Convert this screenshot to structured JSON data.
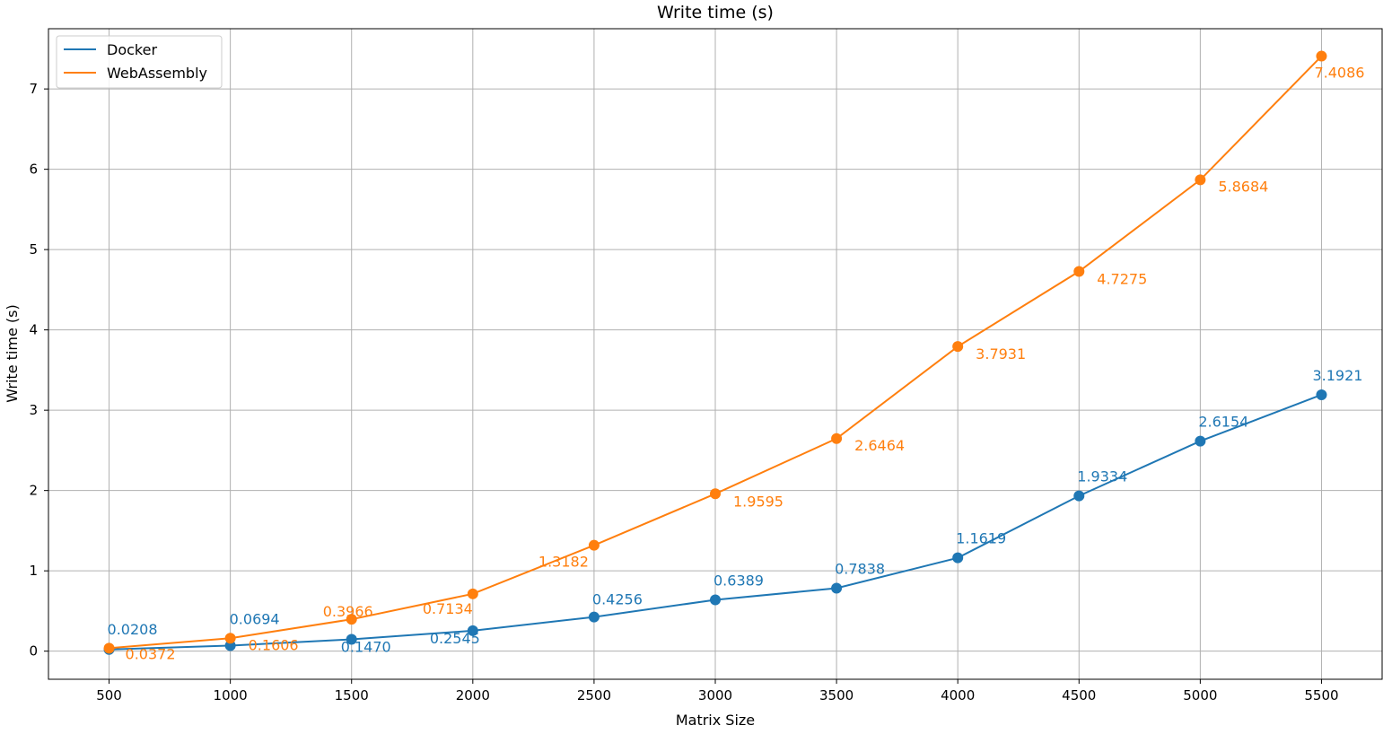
{
  "chart_data": {
    "type": "line",
    "title": "Write time (s)",
    "xlabel": "Matrix Size",
    "ylabel": "Write time (s)",
    "x": [
      500,
      1000,
      1500,
      2000,
      2500,
      3000,
      3500,
      4000,
      4500,
      5000,
      5500
    ],
    "xlim": [
      250,
      5750
    ],
    "ylim": [
      -0.35,
      7.75
    ],
    "xticks": [
      500,
      1000,
      1500,
      2000,
      2500,
      3000,
      3500,
      4000,
      4500,
      5000,
      5500
    ],
    "yticks": [
      0,
      1,
      2,
      3,
      4,
      5,
      6,
      7
    ],
    "grid": true,
    "legend_position": "top-left",
    "series": [
      {
        "name": "Docker",
        "color": "#1f77b4",
        "values": [
          0.0208,
          0.0694,
          0.147,
          0.2545,
          0.4256,
          0.6389,
          0.7838,
          1.1619,
          1.9334,
          2.6154,
          3.1921
        ],
        "labels": [
          "0.0208",
          "0.0694",
          "0.1470",
          "0.2545",
          "0.4256",
          "0.6389",
          "0.7838",
          "1.1619",
          "1.9334",
          "2.6154",
          "3.1921"
        ]
      },
      {
        "name": "WebAssembly",
        "color": "#ff7f0e",
        "values": [
          0.0372,
          0.1606,
          0.3966,
          0.7134,
          1.3182,
          1.9595,
          2.6464,
          3.7931,
          4.7275,
          5.8684,
          7.4086
        ],
        "labels": [
          "0.0372",
          "0.1606",
          "0.3966",
          "0.7134",
          "1.3182",
          "1.9595",
          "2.6464",
          "3.7931",
          "4.7275",
          "5.8684",
          "7.4086"
        ]
      }
    ]
  }
}
